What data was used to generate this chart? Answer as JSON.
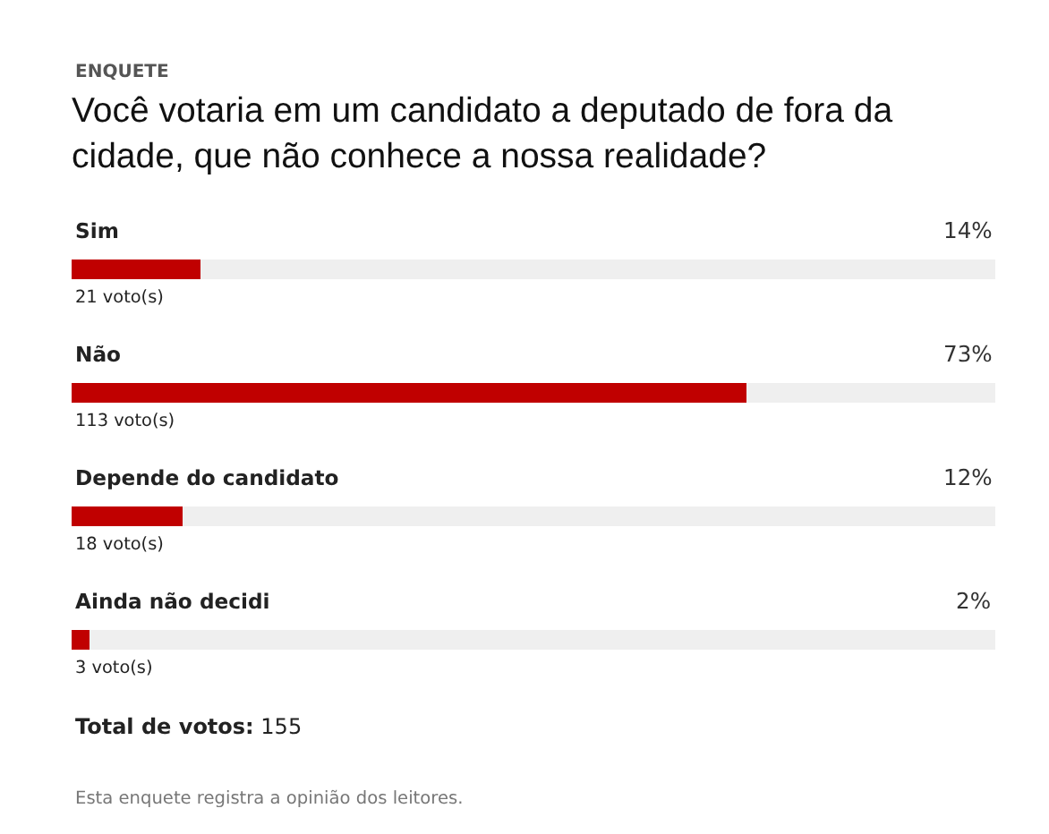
{
  "chart_data": {
    "type": "bar",
    "orientation": "horizontal",
    "subtitle": "ENQUETE",
    "title": "Você votaria em um candidato a deputado de fora da cidade, que não conhece a nossa realidade?",
    "categories": [
      "Sim",
      "Não",
      "Depende do candidato",
      "Ainda não decidi"
    ],
    "values": [
      14,
      73,
      12,
      2
    ],
    "value_labels": [
      "14%",
      "73%",
      "12%",
      "2%"
    ],
    "color": "#c00000",
    "xlim": [
      0,
      100
    ],
    "annotations": [
      "21 voto(s)",
      "113 voto(s)",
      "18 voto(s)",
      "3 voto(s)",
      "Total de votos: 155",
      "Esta enquete registra a opinião dos leitores."
    ]
  }
}
